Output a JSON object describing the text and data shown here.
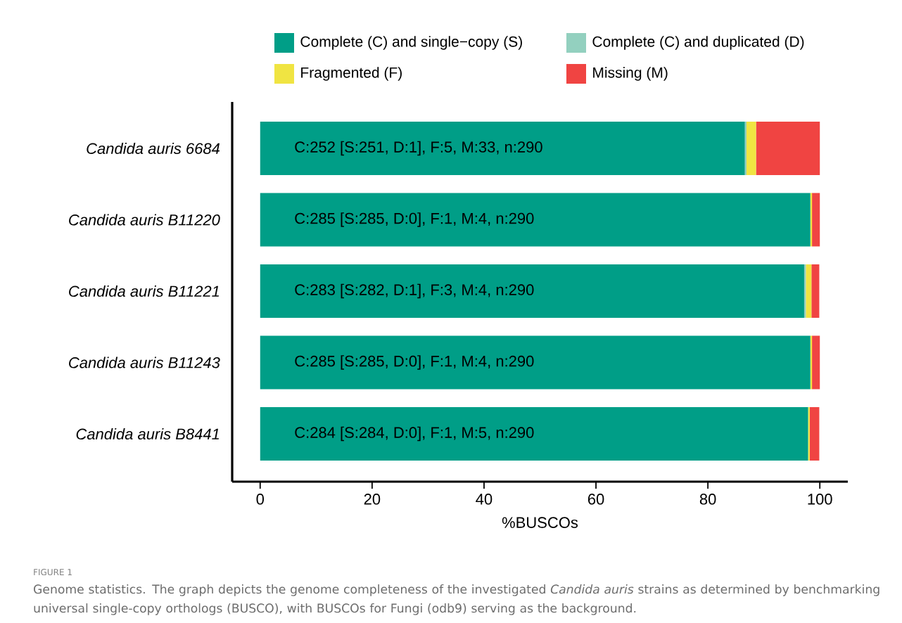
{
  "chart_data": {
    "type": "bar",
    "orientation": "horizontal",
    "stacked": true,
    "xlabel": "%BUSCOs",
    "categories": [
      "Candida auris 6684",
      "Candida auris B11220",
      "Candida auris B11221",
      "Candida auris B11243",
      "Candida auris B8441"
    ],
    "series": [
      {
        "name": "Complete (C) and single−copy (S)",
        "color": "#009e87",
        "values": [
          86.6,
          98.3,
          97.2,
          98.3,
          97.9
        ]
      },
      {
        "name": "Complete (C) and duplicated (D)",
        "color": "#93d0bf",
        "values": [
          0.3,
          0,
          0.3,
          0,
          0
        ]
      },
      {
        "name": "Fragmented (F)",
        "color": "#f0e442",
        "values": [
          1.7,
          0.3,
          1.0,
          0.3,
          0.3
        ]
      },
      {
        "name": "Missing (M)",
        "color": "#f04442",
        "values": [
          11.4,
          1.4,
          1.4,
          1.4,
          1.7
        ]
      }
    ],
    "xlim": [
      -5,
      105
    ],
    "xticks": [
      0,
      20,
      40,
      60,
      80,
      100
    ],
    "legend": "top",
    "grid": false,
    "annotations": [
      "C:252 [S:251, D:1], F:5, M:33, n:290",
      "C:285 [S:285, D:0], F:1, M:4, n:290",
      "C:283 [S:282, D:1], F:3, M:4, n:290",
      "C:285 [S:285, D:0], F:1, M:4, n:290",
      "C:284 [S:284, D:0], F:1, M:5, n:290",
      "FIGURE 1",
      "Genome statistics. The graph depicts the genome completeness of the investigated *Candida auris* strains as determined by benchmarking universal single-copy orthologs (BUSCO), with BUSCOs for Fungi (odb9) serving as the background."
    ]
  }
}
